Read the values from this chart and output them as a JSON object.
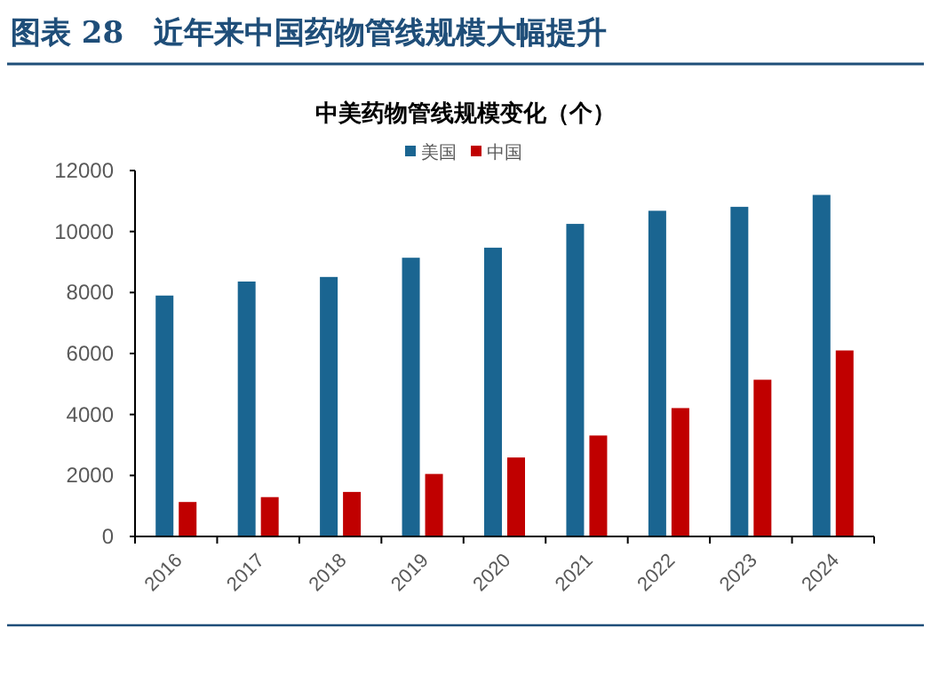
{
  "chart_data": {
    "type": "bar",
    "title": "图表 28　近年来中国药物管线规模大幅提升",
    "subtitle": "中美药物管线规模变化（个）",
    "categories": [
      "2016",
      "2017",
      "2018",
      "2019",
      "2020",
      "2021",
      "2022",
      "2023",
      "2024"
    ],
    "series": [
      {
        "name": "美国",
        "color": "#1a6591",
        "values": [
          7900,
          8360,
          8510,
          9140,
          9470,
          10250,
          10680,
          10810,
          11200
        ]
      },
      {
        "name": "中国",
        "color": "#c00000",
        "values": [
          1130,
          1290,
          1460,
          2050,
          2590,
          3310,
          4210,
          5140,
          6100
        ]
      }
    ],
    "ylim": [
      0,
      12000
    ],
    "yticks": [
      0,
      2000,
      4000,
      6000,
      8000,
      10000,
      12000
    ],
    "legend": "top",
    "grid": false
  }
}
